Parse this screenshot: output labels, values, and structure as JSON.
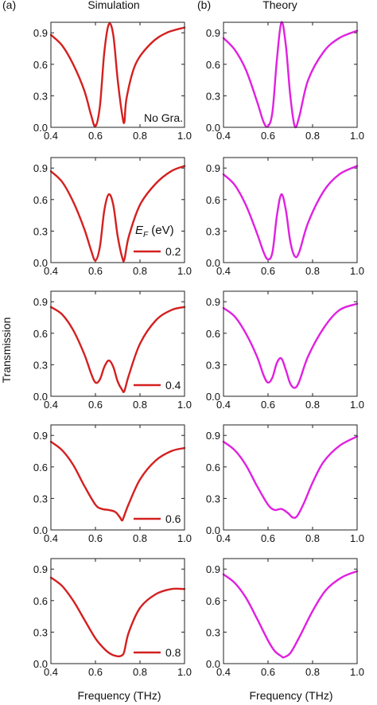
{
  "figure": {
    "panel_a_label": "(a)",
    "panel_b_label": "(b)",
    "col_a_title": "Simulation",
    "col_b_title": "Theory",
    "ylabel": "Transmission",
    "xlabel_left": "Frequency (THz)",
    "xlabel_right": "Frequency (THz)",
    "legend_title": "E_F (eV)",
    "legend_title_parts": {
      "symbol": "E",
      "subscript": "F",
      "unit": " (eV)"
    },
    "colors": {
      "simulation": "#d42020",
      "theory": "#e020e0"
    }
  },
  "chart_data": [
    {
      "type": "line",
      "panel": "a",
      "row": 1,
      "label": "No Gra.",
      "color": "#d42020",
      "xlim": [
        0.4,
        1.0
      ],
      "ylim": [
        0,
        1.0
      ],
      "xticks": [
        "0.4",
        "0.6",
        "0.8",
        "1.0"
      ],
      "yticks": [
        "0.0",
        "0.3",
        "0.6",
        "0.9"
      ],
      "x": [
        0.4,
        0.45,
        0.5,
        0.55,
        0.58,
        0.6,
        0.62,
        0.64,
        0.66,
        0.68,
        0.7,
        0.72,
        0.73,
        0.74,
        0.78,
        0.85,
        0.92,
        1.0
      ],
      "y": [
        0.88,
        0.78,
        0.6,
        0.35,
        0.12,
        0.01,
        0.2,
        0.72,
        0.98,
        0.88,
        0.45,
        0.12,
        0.05,
        0.28,
        0.6,
        0.8,
        0.9,
        0.95
      ]
    },
    {
      "type": "line",
      "panel": "b",
      "row": 1,
      "label": "",
      "color": "#e020e0",
      "xlim": [
        0.4,
        1.0
      ],
      "ylim": [
        0,
        1.0
      ],
      "xticks": [
        "0.4",
        "0.6",
        "0.8",
        "1.0"
      ],
      "yticks": [
        "0.0",
        "0.3",
        "0.6",
        "0.9"
      ],
      "x": [
        0.4,
        0.45,
        0.5,
        0.55,
        0.58,
        0.6,
        0.62,
        0.64,
        0.66,
        0.68,
        0.7,
        0.72,
        0.74,
        0.78,
        0.85,
        0.92,
        1.0
      ],
      "y": [
        0.85,
        0.74,
        0.55,
        0.25,
        0.05,
        0.01,
        0.15,
        0.65,
        1.0,
        0.78,
        0.3,
        0.01,
        0.1,
        0.45,
        0.72,
        0.85,
        0.92
      ]
    },
    {
      "type": "line",
      "panel": "a",
      "row": 2,
      "label": "0.2",
      "color": "#d42020",
      "xlim": [
        0.4,
        1.0
      ],
      "ylim": [
        0,
        1.0
      ],
      "xticks": [
        "0.4",
        "0.6",
        "0.8",
        "1.0"
      ],
      "yticks": [
        "0.0",
        "0.3",
        "0.6",
        "0.9"
      ],
      "x": [
        0.4,
        0.45,
        0.5,
        0.55,
        0.58,
        0.6,
        0.62,
        0.64,
        0.66,
        0.68,
        0.7,
        0.72,
        0.73,
        0.75,
        0.8,
        0.87,
        0.94,
        1.0
      ],
      "y": [
        0.87,
        0.77,
        0.58,
        0.32,
        0.12,
        0.02,
        0.15,
        0.5,
        0.65,
        0.55,
        0.25,
        0.05,
        0.03,
        0.25,
        0.55,
        0.75,
        0.87,
        0.92
      ]
    },
    {
      "type": "line",
      "panel": "b",
      "row": 2,
      "label": "",
      "color": "#e020e0",
      "xlim": [
        0.4,
        1.0
      ],
      "ylim": [
        0,
        1.0
      ],
      "xticks": [
        "0.4",
        "0.6",
        "0.8",
        "1.0"
      ],
      "yticks": [
        "0.0",
        "0.3",
        "0.6",
        "0.9"
      ],
      "x": [
        0.4,
        0.45,
        0.5,
        0.55,
        0.58,
        0.6,
        0.62,
        0.64,
        0.66,
        0.68,
        0.7,
        0.72,
        0.74,
        0.78,
        0.85,
        0.92,
        1.0
      ],
      "y": [
        0.84,
        0.74,
        0.55,
        0.28,
        0.1,
        0.03,
        0.1,
        0.45,
        0.65,
        0.5,
        0.2,
        0.06,
        0.1,
        0.38,
        0.68,
        0.84,
        0.92
      ]
    },
    {
      "type": "line",
      "panel": "a",
      "row": 3,
      "label": "0.4",
      "color": "#d42020",
      "xlim": [
        0.4,
        1.0
      ],
      "ylim": [
        0,
        1.0
      ],
      "xticks": [
        "0.4",
        "0.6",
        "0.8",
        "1.0"
      ],
      "yticks": [
        "0.0",
        "0.3",
        "0.6",
        "0.9"
      ],
      "x": [
        0.4,
        0.45,
        0.5,
        0.55,
        0.58,
        0.6,
        0.62,
        0.64,
        0.66,
        0.68,
        0.7,
        0.72,
        0.73,
        0.75,
        0.8,
        0.87,
        0.94,
        1.0
      ],
      "y": [
        0.85,
        0.78,
        0.63,
        0.4,
        0.22,
        0.13,
        0.16,
        0.28,
        0.34,
        0.28,
        0.14,
        0.06,
        0.05,
        0.2,
        0.5,
        0.72,
        0.82,
        0.85
      ]
    },
    {
      "type": "line",
      "panel": "b",
      "row": 3,
      "label": "",
      "color": "#e020e0",
      "xlim": [
        0.4,
        1.0
      ],
      "ylim": [
        0,
        1.0
      ],
      "xticks": [
        "0.4",
        "0.6",
        "0.8",
        "1.0"
      ],
      "yticks": [
        "0.0",
        "0.3",
        "0.6",
        "0.9"
      ],
      "x": [
        0.4,
        0.45,
        0.5,
        0.55,
        0.58,
        0.6,
        0.62,
        0.64,
        0.66,
        0.68,
        0.7,
        0.72,
        0.74,
        0.78,
        0.85,
        0.92,
        1.0
      ],
      "y": [
        0.84,
        0.76,
        0.6,
        0.38,
        0.2,
        0.13,
        0.18,
        0.32,
        0.36,
        0.25,
        0.12,
        0.08,
        0.14,
        0.38,
        0.65,
        0.82,
        0.88
      ]
    },
    {
      "type": "line",
      "panel": "a",
      "row": 4,
      "label": "0.6",
      "color": "#d42020",
      "xlim": [
        0.4,
        1.0
      ],
      "ylim": [
        0,
        1.0
      ],
      "xticks": [
        "0.4",
        "0.6",
        "0.8",
        "1.0"
      ],
      "yticks": [
        "0.0",
        "0.3",
        "0.6",
        "0.9"
      ],
      "x": [
        0.4,
        0.45,
        0.5,
        0.55,
        0.6,
        0.63,
        0.66,
        0.69,
        0.71,
        0.72,
        0.73,
        0.75,
        0.8,
        0.87,
        0.94,
        1.0
      ],
      "y": [
        0.84,
        0.76,
        0.62,
        0.42,
        0.24,
        0.2,
        0.19,
        0.17,
        0.12,
        0.09,
        0.14,
        0.25,
        0.48,
        0.66,
        0.75,
        0.78
      ]
    },
    {
      "type": "line",
      "panel": "b",
      "row": 4,
      "label": "",
      "color": "#e020e0",
      "xlim": [
        0.4,
        1.0
      ],
      "ylim": [
        0,
        1.0
      ],
      "xticks": [
        "0.4",
        "0.6",
        "0.8",
        "1.0"
      ],
      "yticks": [
        "0.0",
        "0.3",
        "0.6",
        "0.9"
      ],
      "x": [
        0.4,
        0.45,
        0.5,
        0.55,
        0.6,
        0.63,
        0.66,
        0.69,
        0.71,
        0.73,
        0.76,
        0.8,
        0.85,
        0.92,
        1.0
      ],
      "y": [
        0.84,
        0.76,
        0.62,
        0.42,
        0.24,
        0.19,
        0.2,
        0.16,
        0.12,
        0.13,
        0.25,
        0.45,
        0.65,
        0.8,
        0.89
      ]
    },
    {
      "type": "line",
      "panel": "a",
      "row": 5,
      "label": "0.8",
      "color": "#d42020",
      "xlim": [
        0.4,
        1.0
      ],
      "ylim": [
        0,
        1.0
      ],
      "xticks": [
        "0.4",
        "0.6",
        "0.8",
        "1.0"
      ],
      "yticks": [
        "0.0",
        "0.3",
        "0.6",
        "0.9"
      ],
      "x": [
        0.4,
        0.45,
        0.5,
        0.55,
        0.6,
        0.64,
        0.67,
        0.7,
        0.72,
        0.73,
        0.75,
        0.8,
        0.87,
        0.94,
        1.0
      ],
      "y": [
        0.82,
        0.74,
        0.6,
        0.42,
        0.24,
        0.14,
        0.09,
        0.07,
        0.08,
        0.12,
        0.3,
        0.53,
        0.66,
        0.71,
        0.71
      ]
    },
    {
      "type": "line",
      "panel": "b",
      "row": 5,
      "label": "",
      "color": "#e020e0",
      "xlim": [
        0.4,
        1.0
      ],
      "ylim": [
        0,
        1.0
      ],
      "xticks": [
        "0.4",
        "0.6",
        "0.8",
        "1.0"
      ],
      "yticks": [
        "0.0",
        "0.3",
        "0.6",
        "0.9"
      ],
      "x": [
        0.4,
        0.45,
        0.5,
        0.55,
        0.6,
        0.63,
        0.66,
        0.67,
        0.7,
        0.74,
        0.8,
        0.86,
        0.93,
        1.0
      ],
      "y": [
        0.85,
        0.77,
        0.63,
        0.43,
        0.22,
        0.12,
        0.07,
        0.06,
        0.1,
        0.25,
        0.5,
        0.7,
        0.82,
        0.88
      ]
    }
  ]
}
